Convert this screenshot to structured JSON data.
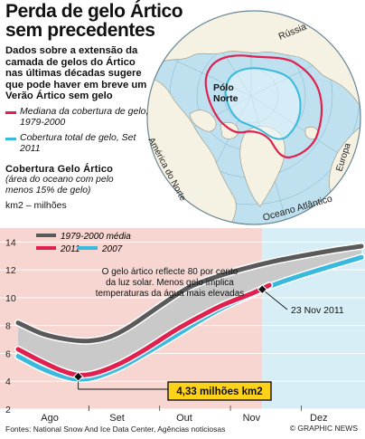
{
  "header": {
    "title_line1": "Perda de gelo Ártico",
    "title_line2": "sem precedentes",
    "subtitle": "Dados sobre a extensão da camada de gelos do Ártico nas últimas décadas sugere que pode haver em breve um Verão Ártico sem gelo"
  },
  "map": {
    "legend": [
      {
        "label": "Mediana da cobertura de gelo, 1979-2000",
        "color": "#e0214f"
      },
      {
        "label": "Cobertura total de gelo, Set 2011",
        "color": "#39b9de"
      }
    ],
    "labels": {
      "russia": "Rússia",
      "north_pole": "Pólo Norte",
      "north_america": "América do Norte",
      "europe": "Europa",
      "atlantic": "Oceano Atlântico"
    },
    "colors": {
      "ocean": "#bfe1ef",
      "land": "#f5f1e3"
    }
  },
  "chart_header": {
    "title": "Cobertura Gelo Ártico",
    "subtitle": "(área do oceano com pelo menos 15%  de gelo)",
    "unit": "km2 – milhões"
  },
  "chart_data": {
    "type": "line",
    "x": [
      "Ago",
      "Set",
      "Out",
      "Nov",
      "Dez"
    ],
    "ylim": [
      2,
      15
    ],
    "yticks": [
      2,
      4,
      6,
      8,
      10,
      12,
      14
    ],
    "series": [
      {
        "name": "1979-2000 média",
        "color": "#5a5a5a",
        "points": [
          [
            0,
            8.2
          ],
          [
            0.35,
            7.4
          ],
          [
            0.7,
            7.0
          ],
          [
            1.0,
            6.9
          ],
          [
            1.3,
            7.2
          ],
          [
            1.6,
            8.0
          ],
          [
            2.0,
            9.4
          ],
          [
            2.4,
            10.7
          ],
          [
            2.8,
            11.5
          ],
          [
            3.2,
            12.1
          ],
          [
            3.6,
            12.6
          ],
          [
            4.0,
            13.0
          ],
          [
            4.45,
            13.4
          ],
          [
            4.85,
            13.7
          ]
        ]
      },
      {
        "name": "2011",
        "color": "#e0214f",
        "points": [
          [
            0,
            6.3
          ],
          [
            0.3,
            5.5
          ],
          [
            0.6,
            4.8
          ],
          [
            0.85,
            4.45
          ],
          [
            1.1,
            4.6
          ],
          [
            1.45,
            5.3
          ],
          [
            1.8,
            6.3
          ],
          [
            2.2,
            7.6
          ],
          [
            2.55,
            8.6
          ],
          [
            2.9,
            9.5
          ],
          [
            3.3,
            10.3
          ],
          [
            3.55,
            10.9
          ]
        ]
      },
      {
        "name": "2007",
        "color": "#39b9de",
        "points": [
          [
            0,
            5.8
          ],
          [
            0.3,
            5.0
          ],
          [
            0.6,
            4.4
          ],
          [
            0.85,
            4.15
          ],
          [
            1.1,
            4.3
          ],
          [
            1.45,
            5.0
          ],
          [
            1.8,
            6.0
          ],
          [
            2.2,
            7.2
          ],
          [
            2.55,
            8.3
          ],
          [
            2.9,
            9.3
          ],
          [
            3.2,
            10.0
          ],
          [
            3.6,
            10.9
          ],
          [
            4.0,
            11.6
          ],
          [
            4.45,
            12.3
          ],
          [
            4.85,
            12.9
          ]
        ]
      }
    ],
    "annotations": {
      "minimum": {
        "x": 0.85,
        "y": 4.33,
        "label": "4,33 milhões km2"
      },
      "nov23": {
        "x": 3.45,
        "y": 10.6,
        "label": "23 Nov 2011"
      },
      "note": "O gelo ártico reflecte 80 por cento da luz solar. Menos gelo implica temperaturas da água mais elevadas"
    },
    "colors": {
      "grey_band": "#c9c9c9",
      "red_shade": "#f7d6d1",
      "blue_shade": "#d8eef7"
    }
  },
  "footer": {
    "sources": "Fontes: National Snow And Ice Data Center, Agências noticiosas",
    "credit": "© GRAPHIC NEWS"
  }
}
